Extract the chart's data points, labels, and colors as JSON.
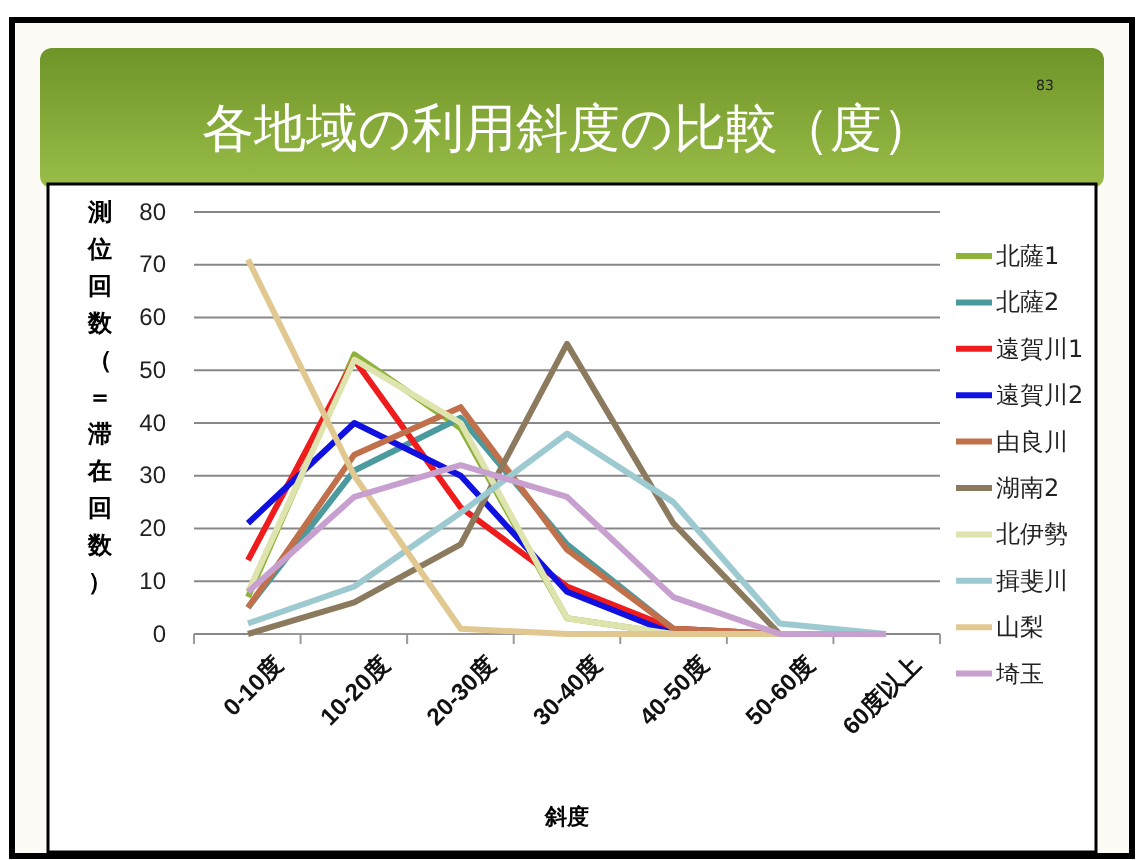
{
  "chart_data": {
    "type": "line",
    "title": "各地域の利用斜度の比較（度）",
    "xlabel": "斜度",
    "ylabel": "測位回数（＝滞在回数）",
    "annotations": [
      "83"
    ],
    "categories": [
      "0-10度",
      "10-20度",
      "20-30度",
      "30-40度",
      "40-50度",
      "50-60度",
      "60度以上"
    ],
    "series": [
      {
        "name": "北薩1",
        "color": "#8db33a",
        "values": [
          7,
          53,
          39,
          3,
          0,
          0,
          0
        ]
      },
      {
        "name": "北薩2",
        "color": "#4a9a9e",
        "values": [
          5,
          31,
          41,
          17,
          1,
          0,
          0
        ]
      },
      {
        "name": "遠賀川1",
        "color": "#ee1c1c",
        "values": [
          14,
          52,
          24,
          9,
          1,
          0,
          0
        ]
      },
      {
        "name": "遠賀川2",
        "color": "#1010e0",
        "values": [
          21,
          40,
          30,
          8,
          0,
          0,
          0
        ]
      },
      {
        "name": "由良川",
        "color": "#c0704a",
        "values": [
          5,
          34,
          43,
          16,
          1,
          0,
          0
        ]
      },
      {
        "name": "湖南2",
        "color": "#8c7a5e",
        "values": [
          0,
          6,
          17,
          55,
          21,
          0,
          0
        ]
      },
      {
        "name": "北伊勢",
        "color": "#dfe3ae",
        "values": [
          8,
          52,
          40,
          3,
          0,
          0,
          0
        ]
      },
      {
        "name": "揖斐川",
        "color": "#9ccad0",
        "values": [
          2,
          9,
          23,
          38,
          25,
          2,
          0
        ]
      },
      {
        "name": "山梨",
        "color": "#e0c890",
        "values": [
          71,
          30,
          1,
          0,
          0,
          0,
          0
        ]
      },
      {
        "name": "埼玉",
        "color": "#c8a0d0",
        "values": [
          8,
          26,
          32,
          26,
          7,
          0,
          0
        ]
      }
    ],
    "ylim": [
      0,
      80
    ],
    "yticks": [
      0,
      10,
      20,
      30,
      40,
      50,
      60,
      70,
      80
    ],
    "grid": "y",
    "legend": "right",
    "marker": "none",
    "line_style": "solid"
  }
}
